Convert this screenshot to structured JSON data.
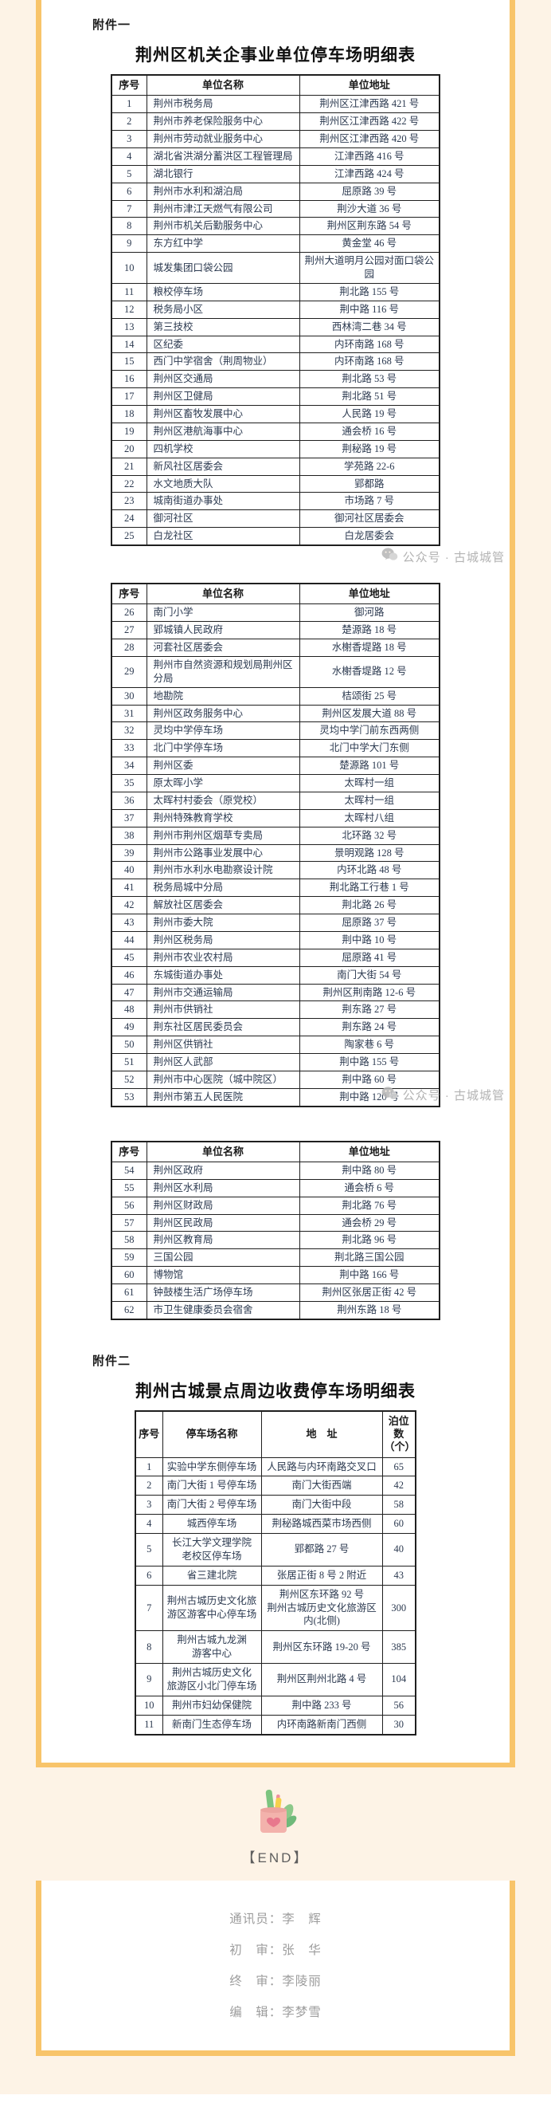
{
  "page": {
    "attachment1_label": "附件一",
    "attachment2_label": "附件二",
    "unit_table_title": "荆州区机关企事业单位停车场明细表",
    "paid_table_title": "荆州古城景点周边收费停车场明细表",
    "watermark_text": "公众号 · 古城城管",
    "end_label": "【END】",
    "icons": {
      "watermark_icon": "wechat-logo",
      "end_icon": "pen-holder-with-leaves"
    },
    "colors": {
      "page_background": "#fdf3e6",
      "panel_border": "#f8c46a",
      "panel_background": "#ffffff",
      "table_text": "#2c3a50",
      "table_border": "#1f1f1f",
      "watermark_gray": "#b3b3b3",
      "footer_gray": "#9d9d9d"
    },
    "footer": {
      "lines": [
        "通讯员：李　辉",
        "初　审：张　华",
        "终　审：李陵丽",
        "编　辑：李梦雪"
      ]
    }
  },
  "unit_table": {
    "headers": [
      "序号",
      "单位名称",
      "单位地址"
    ],
    "segments": [
      {
        "rows": [
          [
            "1",
            "荆州市税务局",
            "荆州区江津西路 421 号"
          ],
          [
            "2",
            "荆州市养老保险服务中心",
            "荆州区江津西路 422 号"
          ],
          [
            "3",
            "荆州市劳动就业服务中心",
            "荆州区江津西路 420 号"
          ],
          [
            "4",
            "湖北省洪湖分蓄洪区工程管理局",
            "江津西路 416 号"
          ],
          [
            "5",
            "湖北银行",
            "江津西路 424 号"
          ],
          [
            "6",
            "荆州市水利和湖泊局",
            "屈原路 39 号"
          ],
          [
            "7",
            "荆州市津江天燃气有限公司",
            "荆沙大道 36 号"
          ],
          [
            "8",
            "荆州市机关后勤服务中心",
            "荆州区荆东路 54 号"
          ],
          [
            "9",
            "东方红中学",
            "黄金堂 46 号"
          ],
          [
            "10",
            "城发集团口袋公园",
            "荆州大道明月公园对面口袋公\n园"
          ],
          [
            "11",
            "粮校停车场",
            "荆北路 155 号"
          ],
          [
            "12",
            "税务局小区",
            "荆中路 116 号"
          ],
          [
            "13",
            "第三技校",
            "西林湾二巷 34 号"
          ],
          [
            "14",
            "区纪委",
            "内环南路 168 号"
          ],
          [
            "15",
            "西门中学宿舍（荆周物业）",
            "内环南路 168 号"
          ],
          [
            "16",
            "荆州区交通局",
            "荆北路 53 号"
          ],
          [
            "17",
            "荆州区卫健局",
            "荆北路 51 号"
          ],
          [
            "18",
            "荆州区畜牧发展中心",
            "人民路 19 号"
          ],
          [
            "19",
            "荆州区港航海事中心",
            "通会桥 16 号"
          ],
          [
            "20",
            "四机学校",
            "荆秘路 19 号"
          ],
          [
            "21",
            "新风社区居委会",
            "学苑路 22-6"
          ],
          [
            "22",
            "水文地质大队",
            "郢都路"
          ],
          [
            "23",
            "城南街道办事处",
            "市场路 7 号"
          ],
          [
            "24",
            "御河社区",
            "御河社区居委会"
          ],
          [
            "25",
            "白龙社区",
            "白龙居委会"
          ]
        ]
      },
      {
        "rows": [
          [
            "26",
            "南门小学",
            "御河路"
          ],
          [
            "27",
            "郢城镇人民政府",
            "楚源路 18 号"
          ],
          [
            "28",
            "河套社区居委会",
            "水榭香堤路 18 号"
          ],
          [
            "29",
            "荆州市自然资源和规划局荆州区\n分局",
            "水榭香堤路 12 号"
          ],
          [
            "30",
            "地勘院",
            "桔颂街 25 号"
          ],
          [
            "31",
            "荆州区政务服务中心",
            "荆州区发展大道 88 号"
          ],
          [
            "32",
            "灵均中学停车场",
            "灵均中学门前东西两侧"
          ],
          [
            "33",
            "北门中学停车场",
            "北门中学大门东侧"
          ],
          [
            "34",
            "荆州区委",
            "楚源路 101 号"
          ],
          [
            "35",
            "原太晖小学",
            "太晖村一组"
          ],
          [
            "36",
            "太晖村村委会（原党校）",
            "太晖村一组"
          ],
          [
            "37",
            "荆州特殊教育学校",
            "太晖村八组"
          ],
          [
            "38",
            "荆州市荆州区烟草专卖局",
            "北环路 32 号"
          ],
          [
            "39",
            "荆州市公路事业发展中心",
            "景明观路 128 号"
          ],
          [
            "40",
            "荆州市水利水电勘察设计院",
            "内环北路 48 号"
          ],
          [
            "41",
            "税务局城中分局",
            "荆北路工行巷 1 号"
          ],
          [
            "42",
            "解放社区居委会",
            "荆北路 26 号"
          ],
          [
            "43",
            "荆州市委大院",
            "屈原路 37 号"
          ],
          [
            "44",
            "荆州区税务局",
            "荆中路 10 号"
          ],
          [
            "45",
            "荆州市农业农村局",
            "屈原路 41 号"
          ],
          [
            "46",
            "东城街道办事处",
            "南门大街 54 号"
          ],
          [
            "47",
            "荆州市交通运输局",
            "荆州区荆南路 12-6 号"
          ],
          [
            "48",
            "荆州市供销社",
            "荆东路 27 号"
          ],
          [
            "49",
            "荆东社区居民委员会",
            "荆东路 24 号"
          ],
          [
            "50",
            "荆州区供销社",
            "陶家巷 6 号"
          ],
          [
            "51",
            "荆州区人武部",
            "荆中路 155 号"
          ],
          [
            "52",
            "荆州市中心医院（城中院区）",
            "荆中路 60 号"
          ],
          [
            "53",
            "荆州市第五人民医院",
            "荆中路 120 号"
          ]
        ]
      },
      {
        "rows": [
          [
            "54",
            "荆州区政府",
            "荆中路 80 号"
          ],
          [
            "55",
            "荆州区水利局",
            "通会桥 6 号"
          ],
          [
            "56",
            "荆州区财政局",
            "荆北路 76 号"
          ],
          [
            "57",
            "荆州区民政局",
            "通会桥 29 号"
          ],
          [
            "58",
            "荆州区教育局",
            "荆北路 96 号"
          ],
          [
            "59",
            "三国公园",
            "荆北路三国公园"
          ],
          [
            "60",
            "博物馆",
            "荆中路 166 号"
          ],
          [
            "61",
            "钟鼓楼生活广场停车场",
            "荆州区张居正街 42 号"
          ],
          [
            "62",
            "市卫生健康委员会宿舍",
            "荆州东路 18 号"
          ]
        ]
      }
    ]
  },
  "paid_table": {
    "headers": [
      "序号",
      "停车场名称",
      "地　址",
      "泊位数\n（个）"
    ],
    "rows": [
      [
        "1",
        "实验中学东侧停车场",
        "人民路与内环南路交叉口",
        "65"
      ],
      [
        "2",
        "南门大街 1 号停车场",
        "南门大街西端",
        "42"
      ],
      [
        "3",
        "南门大街 2 号停车场",
        "南门大街中段",
        "58"
      ],
      [
        "4",
        "城西停车场",
        "荆秘路城西菜市场西侧",
        "60"
      ],
      [
        "5",
        "长江大学文理学院\n老校区停车场",
        "郢都路 27 号",
        "40"
      ],
      [
        "6",
        "省三建北院",
        "张居正街 8 号 2 附近",
        "43"
      ],
      [
        "7",
        "荆州古城历史文化旅\n游区游客中心停车场",
        "荆州区东环路 92 号\n荆州古城历史文化旅游区内(北侧)",
        "300"
      ],
      [
        "8",
        "荆州古城九龙渊\n游客中心",
        "荆州区东环路 19-20 号",
        "385"
      ],
      [
        "9",
        "荆州古城历史文化\n旅游区小北门停车场",
        "荆州区荆州北路 4 号",
        "104"
      ],
      [
        "10",
        "荆州市妇幼保健院",
        "荆中路 233 号",
        "56"
      ],
      [
        "11",
        "新南门生态停车场",
        "内环南路新南门西侧",
        "30"
      ]
    ]
  }
}
